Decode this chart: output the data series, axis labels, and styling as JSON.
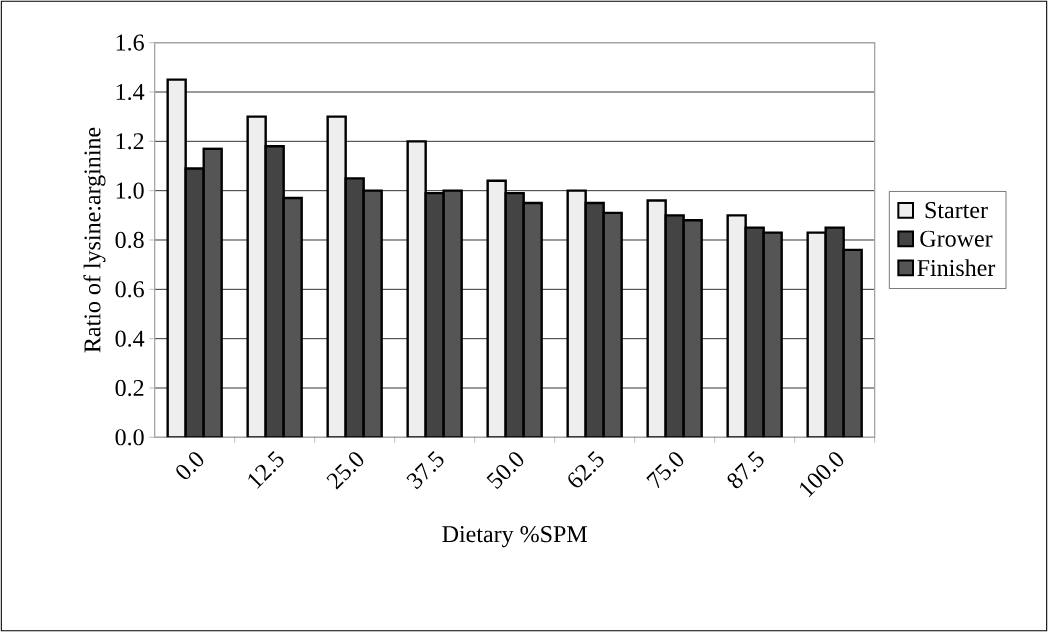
{
  "chart_data": {
    "type": "bar",
    "xlabel": "Dietary %SPM",
    "ylabel": "Ratio of lysine:arginine",
    "categories": [
      "0.0",
      "12.5",
      "25.0",
      "37.5",
      "50.0",
      "62.5",
      "75.0",
      "87.5",
      "100.0"
    ],
    "series": [
      {
        "name": "Starter",
        "color": "#eeeeee",
        "values": [
          1.45,
          1.3,
          1.3,
          1.2,
          1.04,
          1.0,
          0.96,
          0.9,
          0.83
        ]
      },
      {
        "name": "Grower",
        "color": "#444444",
        "values": [
          1.09,
          1.18,
          1.05,
          0.99,
          0.99,
          0.95,
          0.9,
          0.85,
          0.85
        ]
      },
      {
        "name": "Finisher",
        "color": "#555555",
        "values": [
          1.17,
          0.97,
          1.0,
          1.0,
          0.95,
          0.91,
          0.88,
          0.83,
          0.76
        ]
      }
    ],
    "ylim": [
      0,
      1.6
    ],
    "yticks": [
      {
        "value": 0,
        "label": "0.0"
      },
      {
        "value": 0.2,
        "label": "0.2"
      },
      {
        "value": 0.4,
        "label": "0.4"
      },
      {
        "value": 0.6,
        "label": "0.6"
      },
      {
        "value": 0.8,
        "label": "0.8"
      },
      {
        "value": 1.0,
        "label": "1.0"
      },
      {
        "value": 1.2,
        "label": "1.2"
      },
      {
        "value": 1.4,
        "label": "1.4"
      },
      {
        "value": 1.6,
        "label": "1.6"
      }
    ],
    "grid": "y",
    "legend": "right"
  }
}
